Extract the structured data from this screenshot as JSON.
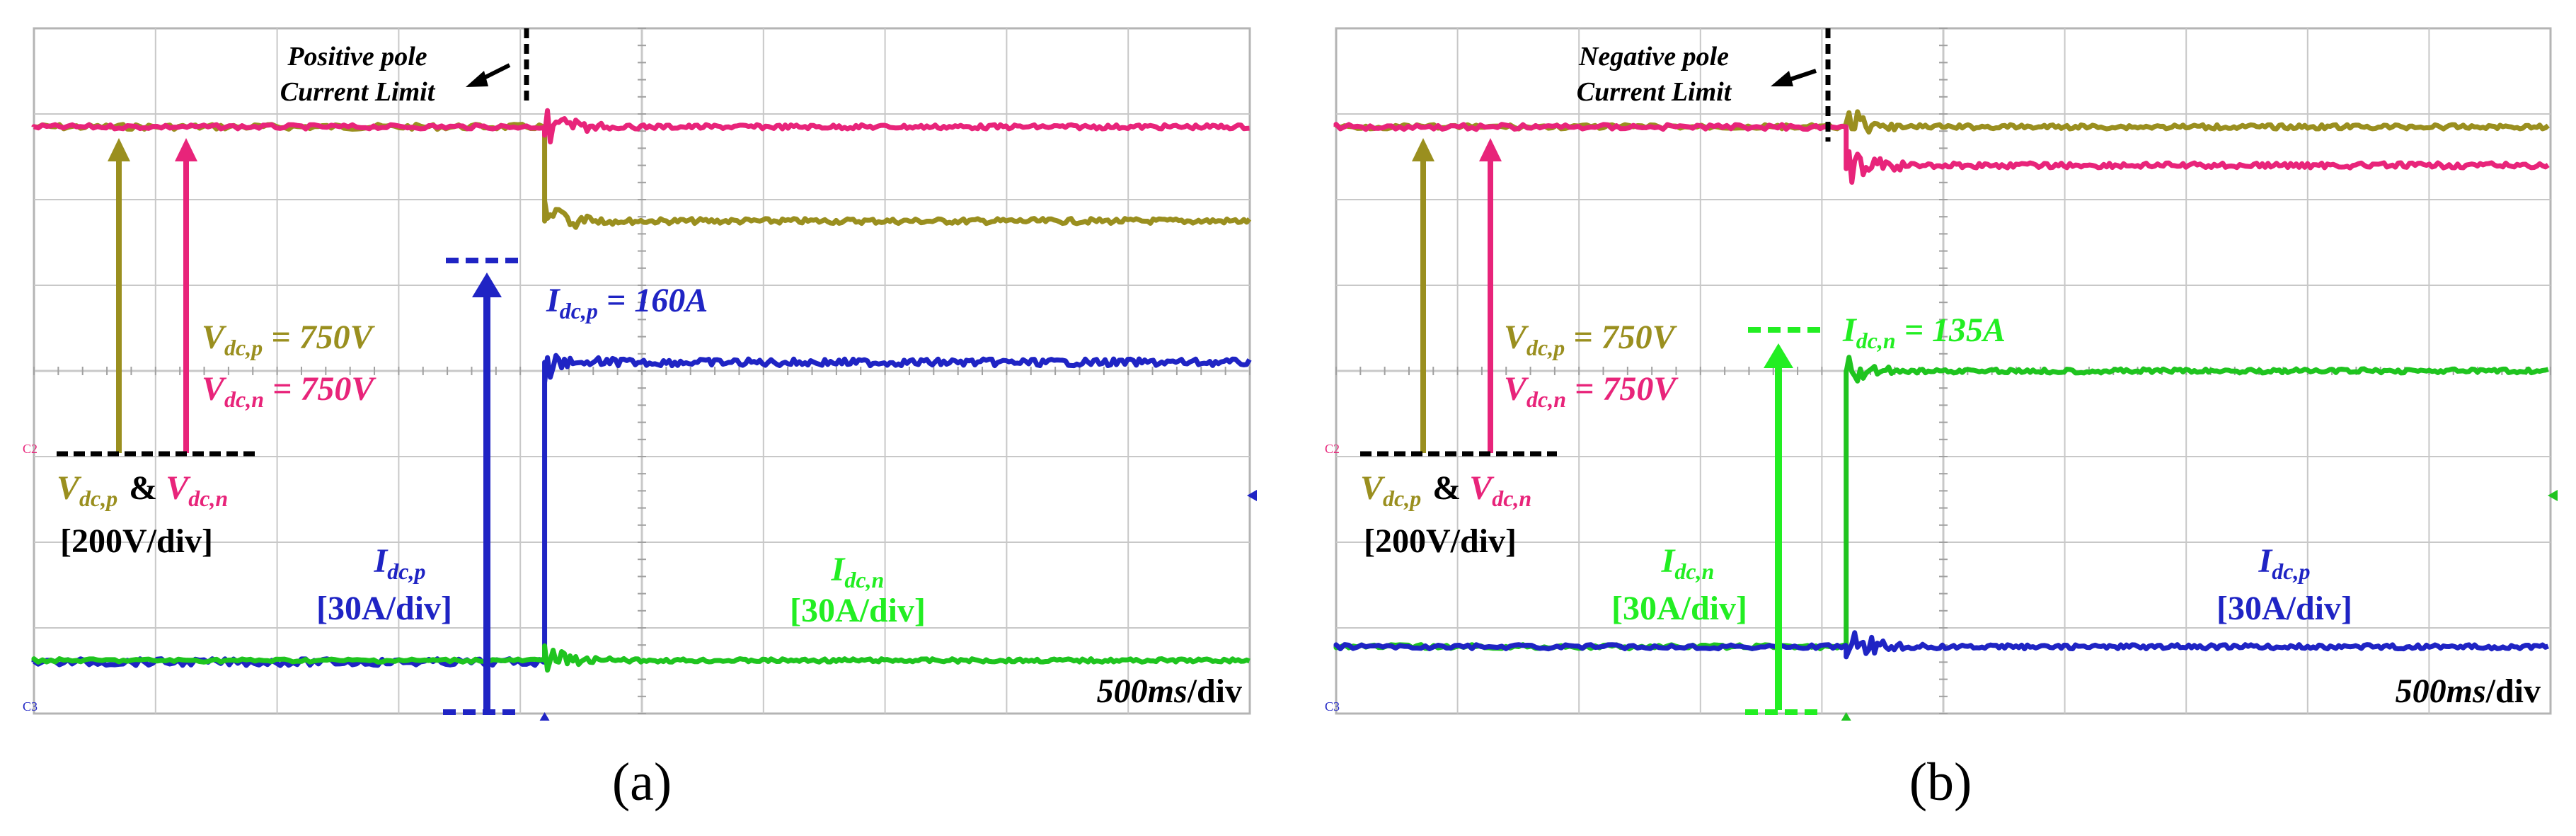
{
  "chart_data": [
    {
      "type": "line",
      "panel_label": "(a)",
      "annotation_title": [
        "Positive pole",
        "Current Limit"
      ],
      "timebase": {
        "value": "500",
        "unit": "ms",
        "suffix": "/div"
      },
      "x_divisions": 10,
      "y_divisions": 8,
      "fault_time_div": 4.2,
      "channel_markers": [
        "C2",
        "C3"
      ],
      "series": [
        {
          "name": "V_dc,p",
          "color": "#9a8f1f",
          "pre_level_div": 6.85,
          "post_level_div": 5.75,
          "noise": 0.06
        },
        {
          "name": "V_dc,n",
          "color": "#e8247a",
          "pre_level_div": 6.85,
          "post_level_div": 6.85,
          "noise": 0.05
        },
        {
          "name": "I_dc,p",
          "color": "#1f24c4",
          "pre_level_div": 0.6,
          "post_level_div": 4.1,
          "noise": 0.08
        },
        {
          "name": "I_dc,n",
          "color": "#1fc41f",
          "pre_level_div": 0.62,
          "post_level_div": 0.62,
          "noise": 0.04
        }
      ],
      "labels": {
        "value_top": {
          "main": "I",
          "sub": "dc,p",
          "rest": " = 160A"
        },
        "vp": {
          "main": "V",
          "sub": "dc,p",
          "rest": " = 750V"
        },
        "vn": {
          "main": "V",
          "sub": "dc,n",
          "rest": " = 750V"
        },
        "vscale_a": {
          "main": "V",
          "sub": "dc,p"
        },
        "vscale_amp": "&",
        "vscale_b": {
          "main": "V",
          "sub": "dc,n"
        },
        "vscale_div": "[200V/div]",
        "cur1": {
          "main": "I",
          "sub": "dc,p"
        },
        "cur1_div": "[30A/div]",
        "cur2": {
          "main": "I",
          "sub": "dc,n"
        },
        "cur2_div": "[30A/div]"
      }
    },
    {
      "type": "line",
      "panel_label": "(b)",
      "annotation_title": [
        "Negative pole",
        "Current Limit"
      ],
      "timebase": {
        "value": "500",
        "unit": "ms",
        "suffix": "/div"
      },
      "x_divisions": 10,
      "y_divisions": 8,
      "fault_time_div": 4.2,
      "channel_markers": [
        "C2",
        "C3"
      ],
      "series": [
        {
          "name": "V_dc,p",
          "color": "#9a8f1f",
          "pre_level_div": 6.85,
          "post_level_div": 6.85,
          "noise": 0.05
        },
        {
          "name": "V_dc,n",
          "color": "#e8247a",
          "pre_level_div": 6.85,
          "post_level_div": 6.4,
          "noise": 0.06
        },
        {
          "name": "I_dc,n",
          "color": "#1fc41f",
          "pre_level_div": 0.78,
          "post_level_div": 4.0,
          "noise": 0.05
        },
        {
          "name": "I_dc,p",
          "color": "#1f24c4",
          "pre_level_div": 0.78,
          "post_level_div": 0.78,
          "noise": 0.05
        }
      ],
      "labels": {
        "value_top": {
          "main": "I",
          "sub": "dc,n",
          "rest": " = 135A"
        },
        "vp": {
          "main": "V",
          "sub": "dc,p",
          "rest": " = 750V"
        },
        "vn": {
          "main": "V",
          "sub": "dc,n",
          "rest": " = 750V"
        },
        "vscale_a": {
          "main": "V",
          "sub": "dc,p"
        },
        "vscale_amp": "&",
        "vscale_b": {
          "main": "V",
          "sub": "dc,n"
        },
        "vscale_div": "[200V/div]",
        "cur1": {
          "main": "I",
          "sub": "dc,n"
        },
        "cur1_div": "[30A/div]",
        "cur2": {
          "main": "I",
          "sub": "dc,p"
        },
        "cur2_div": "[30A/div]"
      }
    }
  ],
  "colors": {
    "vp": "#9a8f1f",
    "vn": "#e8247a",
    "ip": "#1f24c4",
    "in": "#1fc41f",
    "green_label": "#22ee22",
    "grid": "#c8c8c8",
    "frame": "#b4b4b4"
  }
}
